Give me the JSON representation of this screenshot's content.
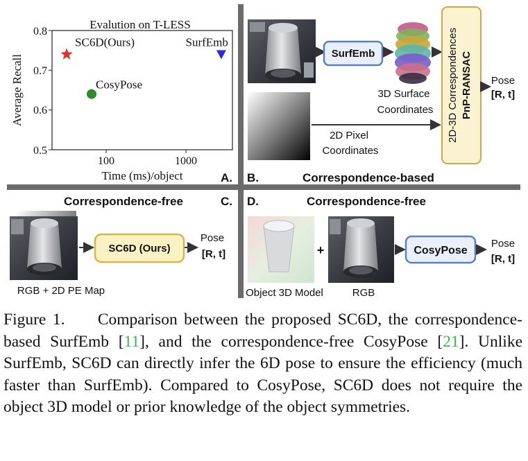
{
  "panels": {
    "a_label": "A.",
    "b_label": "B.",
    "c_label": "C.",
    "d_label": "D.",
    "b_title": "Correspondence-based",
    "c_title": "Correspondence-free",
    "d_title": "Correspondence-free"
  },
  "chart_data": {
    "type": "scatter",
    "title": "Evalution on T-LESS",
    "xlabel": "Time (ms)/object",
    "ylabel": "Average Recall",
    "xscale": "log",
    "xlim": [
      20,
      3000
    ],
    "ylim": [
      0.5,
      0.8
    ],
    "xticks": [
      "100",
      "1000"
    ],
    "yticks": [
      "0.5",
      "0.6",
      "0.7",
      "0.8"
    ],
    "grid": false,
    "points": [
      {
        "label": "SC6D(Ours)",
        "x": 30,
        "y": 0.74,
        "marker": "star",
        "color": "#e03030"
      },
      {
        "label": "SurfEmb",
        "x": 2200,
        "y": 0.74,
        "marker": "triangle-down",
        "color": "#2a2ae0"
      },
      {
        "label": "CosyPose",
        "x": 60,
        "y": 0.64,
        "marker": "circle",
        "color": "#2e8b2e"
      }
    ]
  },
  "panel_b": {
    "surfemb_box": "SurfEmb",
    "surface_caption_1": "3D Surface",
    "surface_caption_2": "Coordinates",
    "pixel_caption_1": "2D Pixel",
    "pixel_caption_2": "Coordinates",
    "corr_box_1": "2D-3D Correspondences",
    "corr_box_2": "PnP-RANSAC",
    "pose": "Pose",
    "pose_rt": "[R, t]"
  },
  "panel_c": {
    "sc6d_box": "SC6D (Ours)",
    "pose": "Pose",
    "pose_rt": "[R, t]",
    "input_caption": "RGB + 2D PE Map"
  },
  "panel_d": {
    "plus": "+",
    "cosypose_box": "CosyPose",
    "pose": "Pose",
    "pose_rt": "[R, t]",
    "model_caption": "Object 3D Model",
    "rgb_caption": "RGB"
  },
  "caption": {
    "prefix": "Figure 1.",
    "t1": "Comparison between the proposed SC6D, the correspondence-based SurfEmb [",
    "r1": "11",
    "t2": "], and the correspondence-free CosyPose [",
    "r2": "21",
    "t3": "]. Unlike SurfEmb, SC6D can directly infer the 6D pose to ensure the efficiency (much faster than SurfEmb). Compared to CosyPose, SC6D does not require the object 3D model or prior knowledge of the object symmetries."
  }
}
